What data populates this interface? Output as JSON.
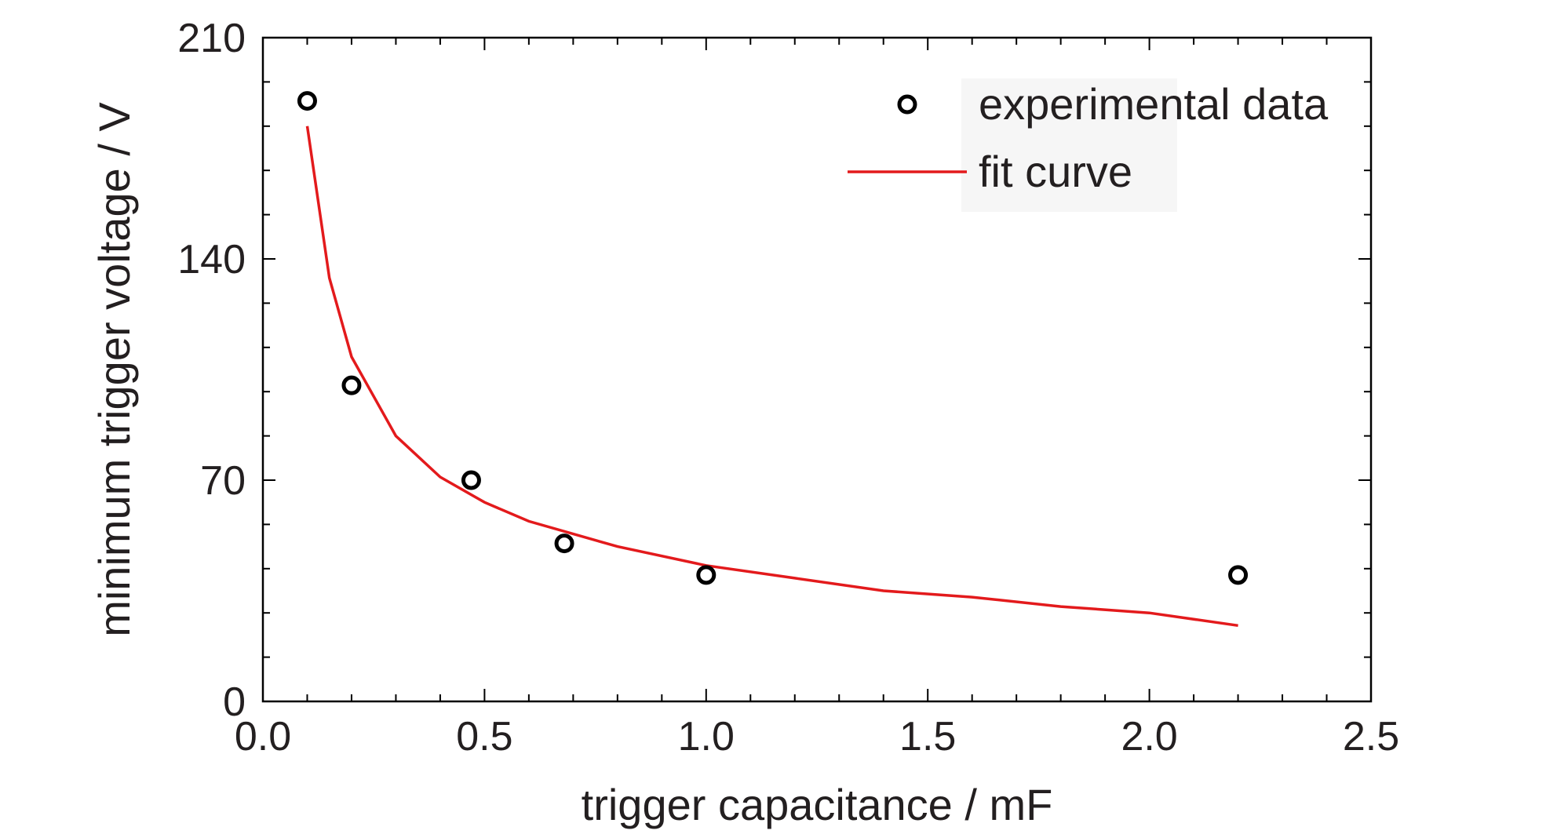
{
  "chart_data": {
    "type": "scatter",
    "xlabel": "trigger capacitance / mF",
    "ylabel": "minimum trigger voltage / V",
    "xlim": [
      0.0,
      2.5
    ],
    "ylim": [
      0,
      210
    ],
    "xticks": [
      "0.0",
      "0.5",
      "1.0",
      "1.5",
      "2.0",
      "2.5"
    ],
    "yticks": [
      "0",
      "70",
      "140",
      "210"
    ],
    "grid": false,
    "legend_position": "top-right",
    "series": [
      {
        "name": "experimental data",
        "kind": "markers",
        "marker": "open-circle",
        "color": "#000000",
        "x": [
          0.1,
          0.2,
          0.47,
          0.68,
          1.0,
          2.2
        ],
        "y": [
          190,
          100,
          70,
          50,
          40,
          40
        ]
      },
      {
        "name": "fit curve",
        "kind": "line",
        "color": "#e31a1c",
        "x": [
          0.1,
          0.15,
          0.2,
          0.3,
          0.4,
          0.5,
          0.6,
          0.8,
          1.0,
          1.2,
          1.4,
          1.6,
          1.8,
          2.0,
          2.2
        ],
        "y": [
          182,
          134,
          109,
          84,
          71,
          63,
          57,
          49,
          43,
          39,
          35,
          33,
          30,
          28,
          24
        ]
      }
    ]
  }
}
